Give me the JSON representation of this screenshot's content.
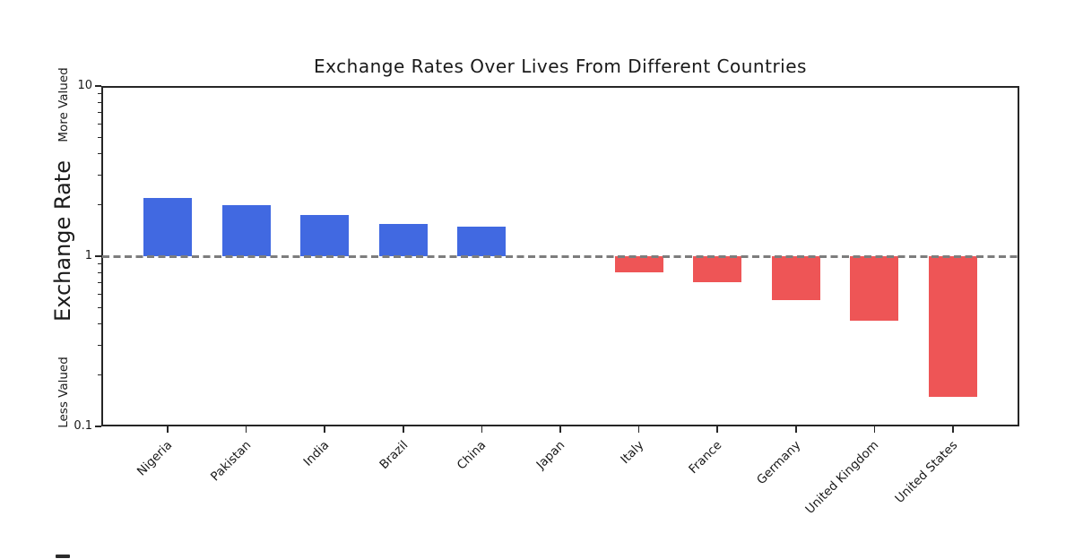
{
  "chart_data": {
    "type": "bar",
    "title": "Exchange Rates Over Lives From Different Countries",
    "categories": [
      "Nigeria",
      "Pakistan",
      "India",
      "Brazil",
      "China",
      "Japan",
      "Italy",
      "France",
      "Germany",
      "United Kingdom",
      "United States"
    ],
    "values": [
      2.2,
      2.0,
      1.75,
      1.55,
      1.5,
      1.0,
      0.8,
      0.7,
      0.55,
      0.42,
      0.15
    ],
    "baseline": 1,
    "bar_colors": {
      "above_baseline": "#4169e1",
      "below_baseline": "#ee5556"
    },
    "reference_line": {
      "value": 1,
      "style": "dashed",
      "color": "#7d7d7d"
    },
    "yscale": "log",
    "ylim": [
      0.1,
      10
    ],
    "ytick_values": [
      10,
      1,
      0.1
    ],
    "ytick_labels": [
      "10",
      "1",
      "0.1"
    ],
    "ylabel": "Exchange Rate",
    "ylabel_annotation_top": "More Valued",
    "ylabel_annotation_bottom": "Less Valued",
    "xlabel": "",
    "x_tick_rotation_deg": 45,
    "grid": false,
    "legend_position": "none",
    "background": "#ffffff",
    "text_color": "#1a1a1a"
  }
}
